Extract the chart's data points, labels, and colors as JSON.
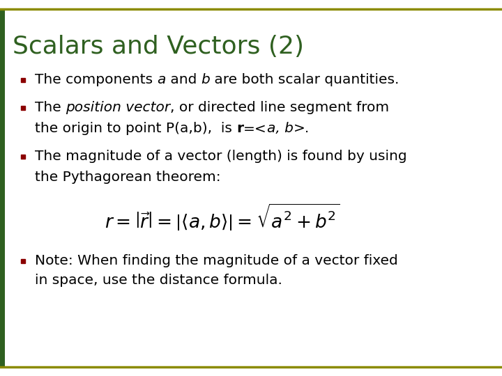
{
  "title": "Scalars and Vectors (2)",
  "title_color": "#2F6020",
  "title_fontsize": 26,
  "background_color": "#FFFFFF",
  "border_color": "#8B8B00",
  "left_bar_color": "#2F6020",
  "bullet_color": "#8B0000",
  "bullet3_line1": "The magnitude of a vector (length) is found by using",
  "bullet3_line2": "the Pythagorean theorem:",
  "bullet4_line1": "Note: When finding the magnitude of a vector fixed",
  "bullet4_line2": "in space, use the distance formula.",
  "text_color": "#000000",
  "text_fontsize": 14.5,
  "formula_fontsize": 19
}
